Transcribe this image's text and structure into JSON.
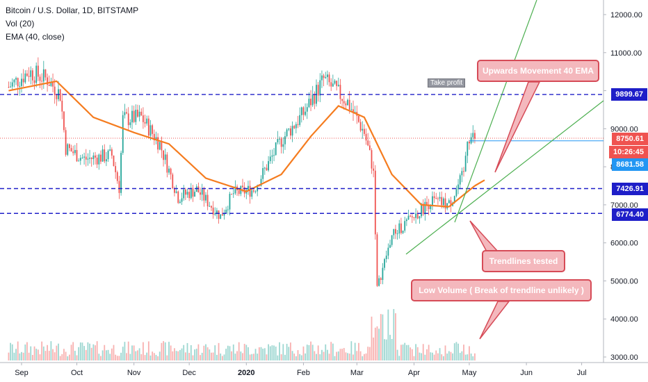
{
  "legend": {
    "title": "Bitcoin / U.S. Dollar, 1D, BITSTAMP",
    "vol": "Vol (20)",
    "ema": "EMA (40, close)"
  },
  "price_axis": {
    "ticks": [
      "12000.00",
      "11000.00",
      "10000.00",
      "9000.00",
      "8000.00",
      "7000.00",
      "6000.00",
      "5000.00",
      "4000.00",
      "3000.00"
    ],
    "tags": {
      "take_profit_level": "9899.67",
      "current_price": "8750.61",
      "countdown": "10:26:45",
      "blue_line": "8681.58",
      "level_mid": "7426.91",
      "level_low": "6774.40"
    }
  },
  "time_axis": [
    "Sep",
    "Oct",
    "Nov",
    "Dec",
    "2020",
    "Feb",
    "Mar",
    "Apr",
    "May",
    "Jun",
    "Jul"
  ],
  "annotations": {
    "take_profit": "Take profit",
    "upwards": "Upwards Movement 40 EMA",
    "trendlines": "Trendlines tested",
    "low_volume": "Low Volume ( Break of trendline unlikely )"
  },
  "colors": {
    "up": "#26a69a",
    "down": "#ef5350",
    "ema": "#f57c1f",
    "level": "#1e1ec8",
    "trend": "#4caf50",
    "callout_fill": "#f4b8bd",
    "callout_border": "#d64b57"
  },
  "chart_data": {
    "type": "candlestick",
    "title": "Bitcoin / U.S. Dollar, 1D, BITSTAMP",
    "y_range": [
      2850,
      12400
    ],
    "x": [
      "Sep",
      "Oct",
      "Nov",
      "Dec",
      "2020",
      "Feb",
      "Mar",
      "Apr",
      "May",
      "Jun",
      "Jul"
    ],
    "price_path": [
      [
        "2019-08-25",
        10100
      ],
      [
        "2019-09-05",
        10500
      ],
      [
        "2019-09-15",
        10300
      ],
      [
        "2019-09-22",
        9900
      ],
      [
        "2019-09-25",
        8500
      ],
      [
        "2019-10-05",
        8200
      ],
      [
        "2019-10-20",
        8300
      ],
      [
        "2019-10-24",
        7450
      ],
      [
        "2019-10-26",
        9250
      ],
      [
        "2019-11-05",
        9300
      ],
      [
        "2019-11-15",
        8600
      ],
      [
        "2019-11-25",
        7200
      ],
      [
        "2019-12-05",
        7400
      ],
      [
        "2019-12-18",
        6700
      ],
      [
        "2019-12-25",
        7300
      ],
      [
        "2020-01-05",
        7400
      ],
      [
        "2020-01-20",
        8700
      ],
      [
        "2020-02-01",
        9400
      ],
      [
        "2020-02-12",
        10300
      ],
      [
        "2020-02-25",
        9700
      ],
      [
        "2020-03-05",
        8900
      ],
      [
        "2020-03-10",
        7900
      ],
      [
        "2020-03-12",
        4800
      ],
      [
        "2020-03-20",
        6200
      ],
      [
        "2020-04-01",
        6700
      ],
      [
        "2020-04-10",
        7100
      ],
      [
        "2020-04-20",
        7000
      ],
      [
        "2020-04-28",
        7800
      ],
      [
        "2020-04-30",
        8800
      ],
      [
        "2020-05-04",
        8750
      ]
    ],
    "ema40_path": [
      [
        "2019-08-25",
        10000
      ],
      [
        "2019-09-20",
        10250
      ],
      [
        "2019-10-10",
        9300
      ],
      [
        "2019-11-01",
        8900
      ],
      [
        "2019-11-20",
        8600
      ],
      [
        "2019-12-10",
        7700
      ],
      [
        "2020-01-01",
        7350
      ],
      [
        "2020-01-20",
        7800
      ],
      [
        "2020-02-05",
        8800
      ],
      [
        "2020-02-20",
        9600
      ],
      [
        "2020-03-05",
        9300
      ],
      [
        "2020-03-20",
        7800
      ],
      [
        "2020-04-05",
        7000
      ],
      [
        "2020-04-20",
        6950
      ],
      [
        "2020-05-04",
        7500
      ]
    ],
    "horizontal_levels": [
      {
        "value": 9899.67,
        "style": "dashed"
      },
      {
        "value": 7426.91,
        "style": "dashed"
      },
      {
        "value": 6774.4,
        "style": "dashed"
      },
      {
        "value": 8681.58,
        "style": "solid"
      },
      {
        "value": 8750.61,
        "style": "dotted"
      }
    ],
    "volume": "Vol (20)"
  }
}
